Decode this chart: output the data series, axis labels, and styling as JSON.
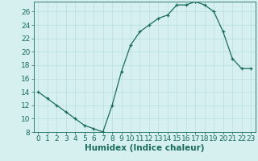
{
  "x": [
    0,
    1,
    2,
    3,
    4,
    5,
    6,
    7,
    8,
    9,
    10,
    11,
    12,
    13,
    14,
    15,
    16,
    17,
    18,
    19,
    20,
    21,
    22,
    23
  ],
  "y": [
    14,
    13,
    12,
    11,
    10,
    9,
    8.5,
    8,
    12,
    17,
    21,
    23,
    24,
    25,
    25.5,
    27,
    27,
    27.5,
    27,
    26,
    23,
    19,
    17.5,
    17.5
  ],
  "line_color": "#1a6b5a",
  "marker_color": "#1a6b5a",
  "bg_color": "#d6f0f0",
  "grid_color": "#b8dede",
  "xlabel": "Humidex (Indice chaleur)",
  "ylim": [
    8,
    27.5
  ],
  "xlim": [
    -0.5,
    23.5
  ],
  "yticks": [
    8,
    10,
    12,
    14,
    16,
    18,
    20,
    22,
    24,
    26
  ],
  "xticks": [
    0,
    1,
    2,
    3,
    4,
    5,
    6,
    7,
    8,
    9,
    10,
    11,
    12,
    13,
    14,
    15,
    16,
    17,
    18,
    19,
    20,
    21,
    22,
    23
  ],
  "tick_label_fontsize": 6.5,
  "xlabel_fontsize": 7.5
}
